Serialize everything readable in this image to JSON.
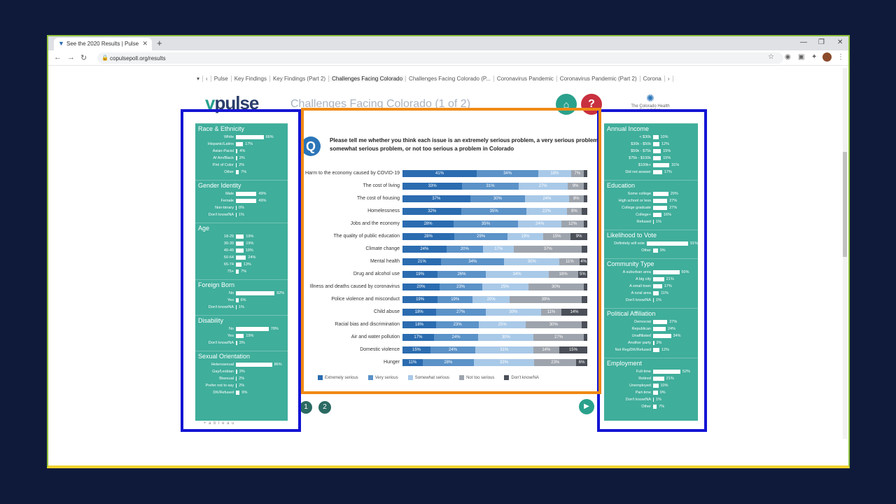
{
  "browser": {
    "tab_title": "See the 2020 Results | Pulse",
    "url": "copulsepoll.org/results"
  },
  "dashboard_tabs": [
    "Pulse",
    "Key Findings",
    "Key Findings (Part 2)",
    "Challenges Facing Colorado",
    "Challenges Facing Colorado (P...",
    "Coronavirus Pandemic",
    "Coronavirus Pandemic (Part 2)",
    "Corona"
  ],
  "logo_text": "pulse",
  "page_title": "Challenges Facing Colorado (1 of 2)",
  "foundation_label": "The Colorado Health Foundation",
  "question": "Please tell me whether you think each issue is an extremely serious problem, a very serious problem, somewhat serious problem, or not too serious a problem in Colorado",
  "legend": [
    "Extremely serious",
    "Very serious",
    "Somewhat serious",
    "Not too serious",
    "Don't know/NA"
  ],
  "colors": {
    "extremely": "#2b6cb0",
    "very": "#5b92c8",
    "somewhat": "#a9c9e8",
    "not_too": "#9ea4ad",
    "dont_know": "#4a4f58",
    "panel": "#3fae9b",
    "blue_box": "#1414d4",
    "orange_box": "#f08a14"
  },
  "chart_data": {
    "type": "bar",
    "stacked": true,
    "categories": [
      "Harm to the economy caused by COVID-19",
      "The cost of living",
      "The cost of housing",
      "Homelessness",
      "Jobs and the economy",
      "The quality of public education",
      "Climate change",
      "Mental health",
      "Drug and alcohol use",
      "Illness and deaths caused by coronavirus",
      "Police violence and misconduct",
      "Child abuse",
      "Racial bias and discrimination",
      "Air and water pollution",
      "Domestic violence",
      "Hunger"
    ],
    "series": [
      {
        "name": "Extremely serious",
        "values": [
          41,
          33,
          37,
          32,
          28,
          28,
          24,
          21,
          19,
          20,
          19,
          18,
          18,
          17,
          15,
          11
        ]
      },
      {
        "name": "Very serious",
        "values": [
          34,
          31,
          30,
          35,
          35,
          29,
          20,
          34,
          26,
          23,
          19,
          27,
          23,
          24,
          24,
          28
        ]
      },
      {
        "name": "Somewhat serious",
        "values": [
          18,
          27,
          24,
          22,
          24,
          19,
          17,
          30,
          34,
          25,
          20,
          30,
          25,
          30,
          31,
          33
        ]
      },
      {
        "name": "Not too serious",
        "values": [
          7,
          9,
          8,
          8,
          12,
          15,
          37,
          11,
          16,
          30,
          39,
          11,
          30,
          27,
          14,
          23
        ]
      },
      {
        "name": "Don't know/NA",
        "values": [
          2,
          2,
          2,
          3,
          2,
          9,
          3,
          4,
          5,
          2,
          3,
          14,
          3,
          2,
          15,
          6
        ]
      }
    ],
    "display_labels": [
      [
        "41%",
        "34%",
        "18%",
        "7%",
        ""
      ],
      [
        "33%",
        "31%",
        "27%",
        "9%",
        ""
      ],
      [
        "37%",
        "30%",
        "24%",
        "8%",
        ""
      ],
      [
        "32%",
        "35%",
        "22%",
        "8%",
        ""
      ],
      [
        "28%",
        "35%",
        "24%",
        "12%",
        ""
      ],
      [
        "28%",
        "29%",
        "19%",
        "15%",
        "9%"
      ],
      [
        "24%",
        "20%",
        "17%",
        "37%",
        ""
      ],
      [
        "21%",
        "34%",
        "30%",
        "11%",
        "4%"
      ],
      [
        "19%",
        "26%",
        "34%",
        "16%",
        "5%"
      ],
      [
        "20%",
        "23%",
        "25%",
        "30%",
        ""
      ],
      [
        "19%",
        "19%",
        "20%",
        "39%",
        ""
      ],
      [
        "18%",
        "27%",
        "30%",
        "11%",
        "14%"
      ],
      [
        "18%",
        "23%",
        "25%",
        "30%",
        ""
      ],
      [
        "17%",
        "24%",
        "30%",
        "27%",
        ""
      ],
      [
        "15%",
        "24%",
        "31%",
        "14%",
        "15%"
      ],
      [
        "11%",
        "28%",
        "33%",
        "23%",
        "6%"
      ]
    ]
  },
  "left_panel": [
    {
      "title": "Race & Ethnicity",
      "rows": [
        [
          "White",
          66,
          "66%"
        ],
        [
          "Hispanic/Latinx",
          17,
          "17%"
        ],
        [
          "Asian-Pacisl",
          4,
          "4%"
        ],
        [
          "Af Am/Black",
          3,
          "3%"
        ],
        [
          "P/el of Color",
          2,
          "2%"
        ],
        [
          "Other",
          7,
          "7%"
        ]
      ]
    },
    {
      "title": "Gender Identity",
      "rows": [
        [
          "Male",
          49,
          "49%"
        ],
        [
          "Female",
          49,
          "49%"
        ],
        [
          "Non-binary",
          0,
          "0%"
        ],
        [
          "Don't know/NA",
          1,
          "1%"
        ]
      ]
    },
    {
      "title": "Age",
      "rows": [
        [
          "18-29",
          19,
          "19%"
        ],
        [
          "30-39",
          19,
          "19%"
        ],
        [
          "40-49",
          18,
          "18%"
        ],
        [
          "50-64",
          24,
          "24%"
        ],
        [
          "65-74",
          13,
          "13%"
        ],
        [
          "75+",
          7,
          "7%"
        ]
      ]
    },
    {
      "title": "Foreign Born",
      "rows": [
        [
          "No",
          92,
          "92%"
        ],
        [
          "Yes",
          6,
          "6%"
        ],
        [
          "Don't know/NA",
          1,
          "1%"
        ]
      ]
    },
    {
      "title": "Disability",
      "rows": [
        [
          "No",
          78,
          "78%"
        ],
        [
          "Yes",
          19,
          "19%"
        ],
        [
          "Don't know/NA",
          3,
          "3%"
        ]
      ]
    },
    {
      "title": "Sexual Orientation",
      "rows": [
        [
          "Heterosexual",
          86,
          "86%"
        ],
        [
          "Gay/Lesbian",
          3,
          "3%"
        ],
        [
          "Bisexual",
          2,
          "2%"
        ],
        [
          "Prefer not to say",
          2,
          "2%"
        ],
        [
          "DK/Refused",
          9,
          "9%"
        ]
      ]
    }
  ],
  "right_panel": [
    {
      "title": "Annual Income",
      "rows": [
        [
          "< $30k",
          10,
          "10%"
        ],
        [
          "$30k - $50k",
          12,
          "12%"
        ],
        [
          "$50k - $75k",
          15,
          "15%"
        ],
        [
          "$75k - $100k",
          15,
          "15%"
        ],
        [
          "$100k+",
          31,
          "31%"
        ],
        [
          "Did not answer",
          17,
          "17%"
        ]
      ]
    },
    {
      "title": "Education",
      "rows": [
        [
          "Some college",
          29,
          "29%"
        ],
        [
          "High school or less",
          27,
          "27%"
        ],
        [
          "College graduate",
          27,
          "27%"
        ],
        [
          "College+",
          16,
          "16%"
        ],
        [
          "Refused",
          1,
          "1%"
        ]
      ]
    },
    {
      "title": "Likelihood to Vote",
      "rows": [
        [
          "Definitely will vote",
          91,
          "91%"
        ],
        [
          "Other",
          9,
          "9%"
        ]
      ]
    },
    {
      "title": "Community Type",
      "rows": [
        [
          "A suburban area",
          50,
          "50%"
        ],
        [
          "A big city",
          21,
          "21%"
        ],
        [
          "A small town",
          17,
          "17%"
        ],
        [
          "A rural area",
          11,
          "11%"
        ],
        [
          "Don't know/NA",
          1,
          "1%"
        ]
      ]
    },
    {
      "title": "Political Affiliation",
      "rows": [
        [
          "Democrat",
          27,
          "27%"
        ],
        [
          "Republican",
          24,
          "24%"
        ],
        [
          "Unaffiliated",
          34,
          "34%"
        ],
        [
          "Another party",
          2,
          "2%"
        ],
        [
          "Not Reg/DK/Refused",
          12,
          "12%"
        ]
      ]
    },
    {
      "title": "Employment",
      "rows": [
        [
          "Full-time",
          52,
          "52%"
        ],
        [
          "Retired",
          21,
          "21%"
        ],
        [
          "Unemployed",
          10,
          "10%"
        ],
        [
          "Part-time",
          9,
          "9%"
        ],
        [
          "Don't know/NA",
          1,
          "1%"
        ],
        [
          "Other",
          7,
          "7%"
        ]
      ]
    }
  ],
  "pager": [
    "1",
    "2"
  ],
  "tableau_label": "+ a b l e a u"
}
